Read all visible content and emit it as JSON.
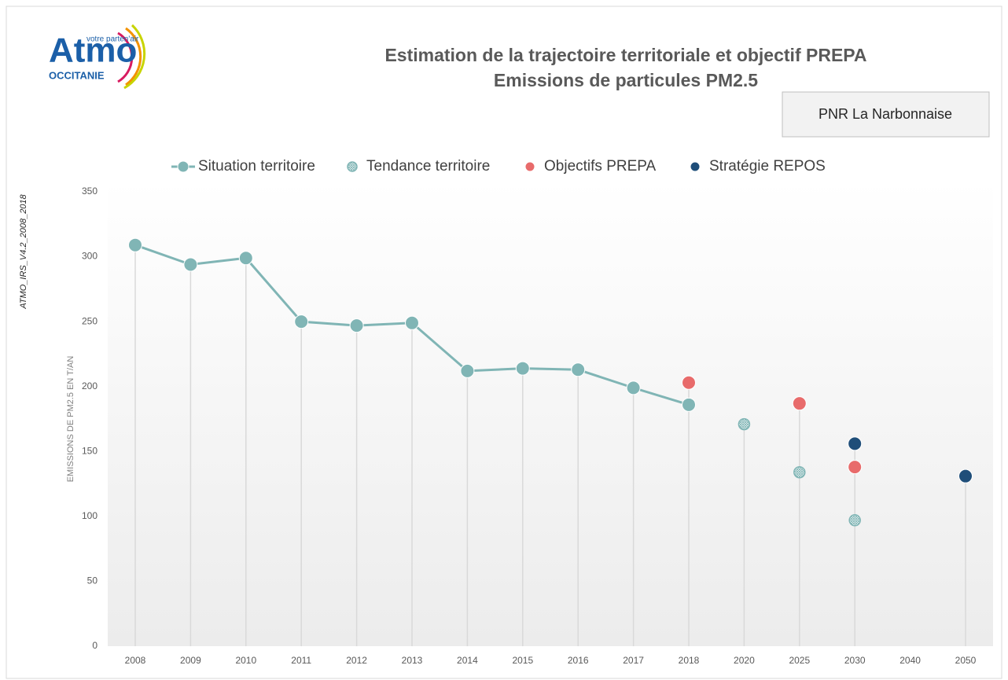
{
  "logo": {
    "name": "Atmo",
    "tagline": "votre parten'air",
    "region": "OCCITANIE"
  },
  "side_note": "ATMO_IRS_V4.2_2008_2018",
  "territory": "PNR La Narbonnaise",
  "chart_data": {
    "type": "line",
    "title": [
      "Estimation de la trajectoire territoriale et objectif PREPA",
      "Emissions de particules PM2.5"
    ],
    "ylabel": "EMISSIONS  DE PM2.5 EN T/AN",
    "categories": [
      "2008",
      "2009",
      "2010",
      "2011",
      "2012",
      "2013",
      "2014",
      "2015",
      "2016",
      "2017",
      "2018",
      "2020",
      "2025",
      "2030",
      "2040",
      "2050"
    ],
    "series": [
      {
        "name": "Situation territoire",
        "color": "#80b5b5",
        "line": true,
        "marker": "solid",
        "values": [
          309,
          294,
          299,
          250,
          247,
          249,
          212,
          214,
          213,
          199,
          186,
          null,
          null,
          null,
          null,
          null
        ]
      },
      {
        "name": "Tendance territoire",
        "color": "#80b5b5",
        "line": false,
        "marker": "hatched",
        "values": [
          null,
          null,
          null,
          null,
          null,
          null,
          null,
          null,
          null,
          null,
          null,
          171,
          134,
          97,
          null,
          null
        ]
      },
      {
        "name": "Objectifs PREPA",
        "color": "#e86b6b",
        "line": false,
        "marker": "solid",
        "values": [
          null,
          null,
          null,
          null,
          null,
          null,
          null,
          null,
          null,
          null,
          203,
          null,
          187,
          138,
          null,
          null
        ]
      },
      {
        "name": "Stratégie REPOS",
        "color": "#1f4e79",
        "line": false,
        "marker": "solid",
        "values": [
          null,
          null,
          null,
          null,
          null,
          null,
          null,
          null,
          null,
          null,
          null,
          null,
          null,
          156,
          null,
          131
        ]
      }
    ],
    "ylim": [
      0,
      350
    ],
    "yticks": [
      0,
      50,
      100,
      150,
      200,
      250,
      300,
      350
    ],
    "legend": "top"
  }
}
